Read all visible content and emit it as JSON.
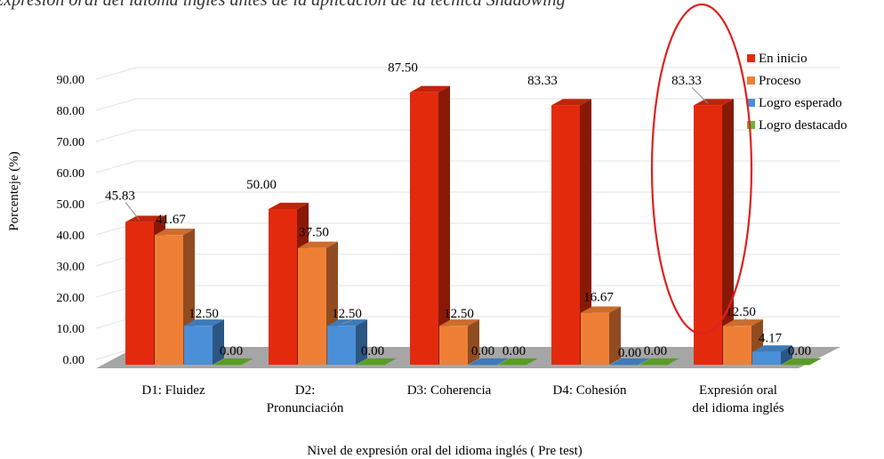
{
  "chart_data": {
    "type": "bar",
    "title": "Expresión oral del idioma inglés antes de la aplicación de la técnica Shadowing",
    "xlabel": "Nivel de expresión oral del idioma inglés ( Pre test)",
    "ylabel": "Porcenteje (%)",
    "ylim": [
      0,
      90
    ],
    "yticks": [
      "0.00",
      "10.00",
      "20.00",
      "30.00",
      "40.00",
      "50.00",
      "60.00",
      "70.00",
      "80.00",
      "90.00"
    ],
    "categories": [
      "D1: Fluidez",
      "D2: Pronunciación",
      "D3: Coherencia",
      "D4: Cohesión",
      "Expresión oral del idioma inglés"
    ],
    "category_lines": [
      [
        "D1: Fluidez"
      ],
      [
        "D2:",
        "Pronunciación"
      ],
      [
        "D3: Coherencia"
      ],
      [
        "D4: Cohesión"
      ],
      [
        "Expresión oral",
        "del idioma inglés"
      ]
    ],
    "series": [
      {
        "name": "En inicio",
        "color": "#e42a0c",
        "values": [
          45.83,
          50.0,
          87.5,
          83.33,
          83.33
        ],
        "labels": [
          "45.83",
          "50.00",
          "87.50",
          "83.33",
          "83.33"
        ]
      },
      {
        "name": "Proceso",
        "color": "#f07f36",
        "values": [
          41.67,
          37.5,
          12.5,
          16.67,
          12.5
        ],
        "labels": [
          "41.67",
          "37.50",
          "12.50",
          "16.67",
          "12.50"
        ]
      },
      {
        "name": "Logro esperado",
        "color": "#4a8fd8",
        "values": [
          12.5,
          12.5,
          0.0,
          0.0,
          4.17
        ],
        "labels": [
          "12.50",
          "12.50",
          "0.00",
          "0.00",
          "4.17"
        ]
      },
      {
        "name": "Logro destacado",
        "color": "#6ab82c",
        "values": [
          0.0,
          0.0,
          0.0,
          0.0,
          0.0
        ],
        "labels": [
          "0.00",
          "0.00",
          "0.00",
          "0.00",
          "0.00"
        ]
      }
    ],
    "legend": "right",
    "grid": true,
    "annotation": {
      "type": "ellipse",
      "color": "#e02020",
      "target_category": "Expresión oral del idioma inglés"
    }
  }
}
